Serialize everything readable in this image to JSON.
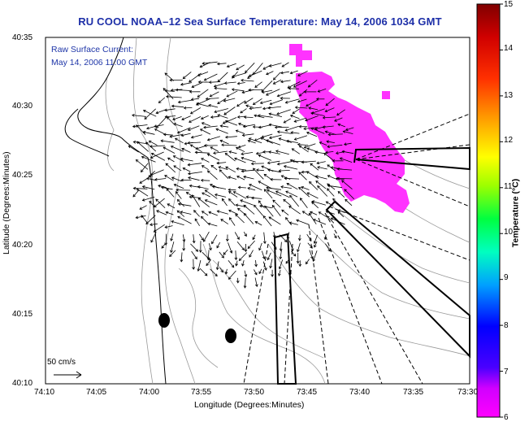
{
  "title": "RU COOL  NOAA–12  Sea Surface Temperature:  May 14, 2006 1034 GMT",
  "inset": {
    "line1": "Raw Surface Current:",
    "line2": "May 14, 2006 11:00 GMT"
  },
  "axes": {
    "xlabel": "Longitude (Degrees:Minutes)",
    "ylabel": "Latitude (Degrees:Minutes)",
    "xticks": [
      "74:10",
      "74:05",
      "74:00",
      "73:55",
      "73:50",
      "73:45",
      "73:40",
      "73:35",
      "73:30"
    ],
    "yticks": [
      "40:35",
      "40:30",
      "40:25",
      "40:20",
      "40:15",
      "40:10"
    ]
  },
  "scale": {
    "label": "50 cm/s"
  },
  "colorbar": {
    "title": "Temperature (°C)",
    "ticks": [
      "15",
      "14",
      "13",
      "12",
      "11",
      "10",
      "9",
      "8",
      "7",
      "6"
    ],
    "colors": [
      "#ff00ff",
      "#4400ff",
      "#0000ff",
      "#00c8ff",
      "#00ff80",
      "#a8ff00",
      "#ffff00",
      "#ff9a00",
      "#ff2000",
      "#c80000",
      "#8a0000"
    ]
  }
}
